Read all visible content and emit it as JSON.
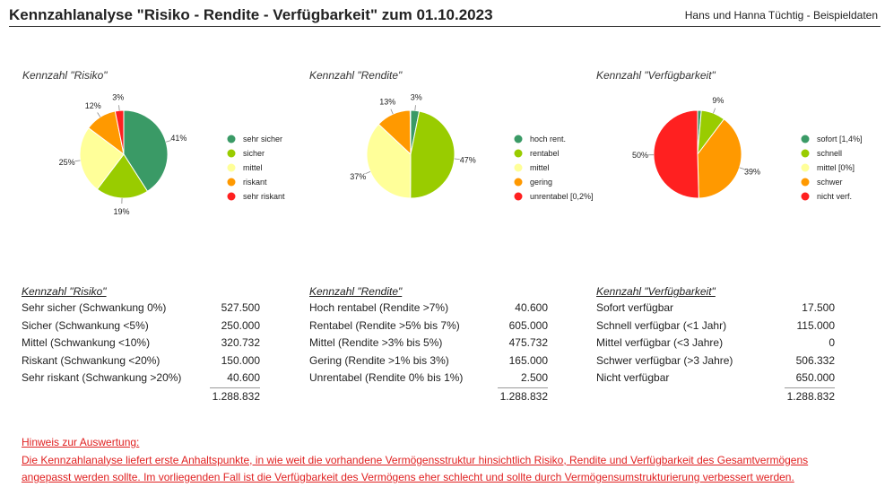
{
  "header": {
    "title": "Kennzahlanalyse \"Risiko - Rendite - Verfügbarkeit\" zum 01.10.2023",
    "subtitle": "Hans und Hanna Tüchtig - Beispieldaten"
  },
  "chart_data": [
    {
      "type": "pie",
      "title": "Kennzahl \"Risiko\"",
      "categories": [
        "sehr sicher",
        "sicher",
        "mittel",
        "riskant",
        "sehr riskant"
      ],
      "values": [
        527500,
        250000,
        320732,
        150000,
        40600
      ],
      "labels": [
        "41%",
        "19%",
        "25%",
        "12%",
        "3%"
      ],
      "colors": [
        "#3a9a66",
        "#99cc00",
        "#ffff99",
        "#ff9900",
        "#ff2020"
      ],
      "legend": "right"
    },
    {
      "type": "pie",
      "title": "Kennzahl \"Rendite\"",
      "categories": [
        "hoch rent.",
        "rentabel",
        "mittel",
        "gering",
        "unrentabel [0,2%]"
      ],
      "values": [
        40600,
        605000,
        475732,
        165000,
        2500
      ],
      "labels": [
        "3%",
        "47%",
        "37%",
        "13%",
        ""
      ],
      "colors": [
        "#3a9a66",
        "#99cc00",
        "#ffff99",
        "#ff9900",
        "#ff2020"
      ],
      "legend": "right"
    },
    {
      "type": "pie",
      "title": "Kennzahl \"Verfügbarkeit\"",
      "categories": [
        "sofort [1,4%]",
        "schnell",
        "mittel [0%]",
        "schwer",
        "nicht verf."
      ],
      "values": [
        17500,
        115000,
        0,
        506332,
        650000
      ],
      "labels": [
        "",
        "9%",
        "",
        "39%",
        "50%"
      ],
      "colors": [
        "#3a9a66",
        "#99cc00",
        "#ffff99",
        "#ff9900",
        "#ff2020"
      ],
      "legend": "right"
    }
  ],
  "tables": [
    {
      "title": "Kennzahl \"Risiko\"",
      "rows": [
        {
          "label": "Sehr sicher (Schwankung 0%)",
          "value": "527.500"
        },
        {
          "label": "Sicher (Schwankung <5%)",
          "value": "250.000"
        },
        {
          "label": "Mittel (Schwankung <10%)",
          "value": "320.732"
        },
        {
          "label": "Riskant (Schwankung <20%)",
          "value": "150.000"
        },
        {
          "label": "Sehr riskant (Schwankung >20%)",
          "value": "40.600"
        }
      ],
      "total": "1.288.832"
    },
    {
      "title": "Kennzahl \"Rendite\"",
      "rows": [
        {
          "label": "Hoch rentabel (Rendite >7%)",
          "value": "40.600"
        },
        {
          "label": "Rentabel (Rendite >5% bis 7%)",
          "value": "605.000"
        },
        {
          "label": "Mittel (Rendite >3% bis 5%)",
          "value": "475.732"
        },
        {
          "label": "Gering (Rendite >1% bis 3%)",
          "value": "165.000"
        },
        {
          "label": "Unrentabel (Rendite 0% bis 1%)",
          "value": "2.500"
        }
      ],
      "total": "1.288.832"
    },
    {
      "title": "Kennzahl \"Verfügbarkeit\"",
      "rows": [
        {
          "label": "Sofort verfügbar",
          "value": "17.500"
        },
        {
          "label": "Schnell verfügbar (<1 Jahr)",
          "value": "115.000"
        },
        {
          "label": "Mittel verfügbar (<3 Jahre)",
          "value": "0"
        },
        {
          "label": "Schwer verfügbar (>3 Jahre)",
          "value": "506.332"
        },
        {
          "label": "Nicht verfügbar",
          "value": "650.000"
        }
      ],
      "total": "1.288.832"
    }
  ],
  "note": {
    "heading": "Hinweis zur Auswertung:",
    "line1": "Die Kennzahlanalyse liefert erste Anhaltspunkte, in wie weit die vorhandene Vermögensstruktur hinsichtlich Risiko, Rendite und Verfügbarkeit des Gesamtvermögens",
    "line2": "angepasst werden sollte. Im vorliegenden Fall ist die Verfügbarkeit des Vermögens eher schlecht und sollte durch Vermögensumstrukturierung verbessert werden."
  }
}
